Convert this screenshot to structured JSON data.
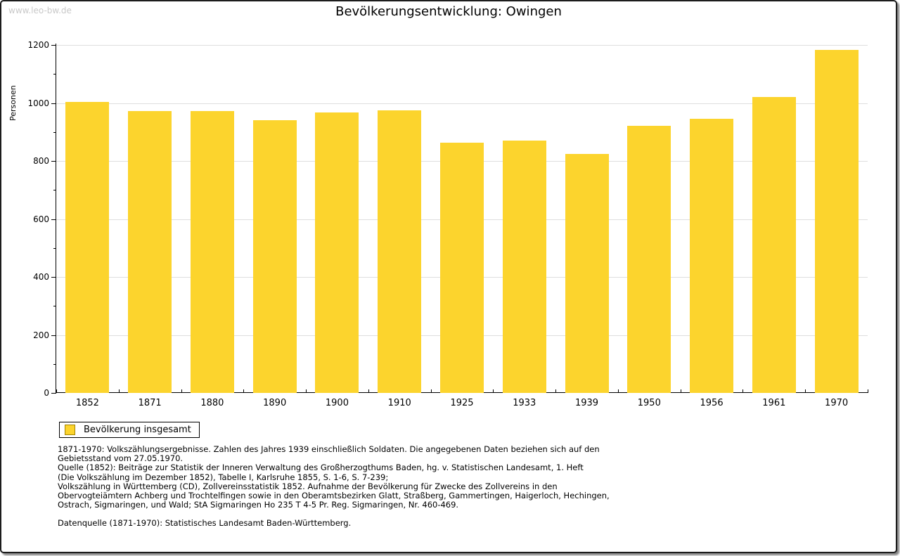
{
  "page": {
    "watermark": "www.leo-bw.de",
    "title": "Bevölkerungsentwicklung: Owingen"
  },
  "chart_data": {
    "type": "bar",
    "title": "Bevölkerungsentwicklung: Owingen",
    "xlabel": "",
    "ylabel": "Personen",
    "categories": [
      "1852",
      "1871",
      "1880",
      "1890",
      "1900",
      "1910",
      "1925",
      "1933",
      "1939",
      "1950",
      "1956",
      "1961",
      "1970"
    ],
    "values": [
      1003,
      971,
      972,
      941,
      968,
      975,
      862,
      870,
      824,
      922,
      946,
      1021,
      1183
    ],
    "ylim": [
      0,
      1200
    ],
    "ytick_step": 200,
    "ytick_minor_step": 100,
    "grid": true,
    "bar_color": "#fcd42d",
    "gridline_color": "#dedede",
    "legend_entries": [
      "Bevölkerung insgesamt"
    ],
    "legend_position": "bottom-left"
  },
  "legend": {
    "label": "Bevölkerung insgesamt"
  },
  "footnotes": {
    "lines": [
      "1871-1970: Volkszählungsergebnisse. Zahlen des Jahres 1939 einschließlich Soldaten. Die angegebenen Daten beziehen sich auf den",
      "Gebietsstand vom 27.05.1970.",
      "Quelle (1852): Beiträge zur Statistik der Inneren Verwaltung des Großherzogthums Baden, hg. v. Statistischen Landesamt, 1. Heft",
      "(Die Volkszählung im Dezember 1852), Tabelle I, Karlsruhe 1855, S. 1-6, S. 7-239;",
      "Volkszählung in Württemberg (CD), Zollvereinsstatistik 1852. Aufnahme der Bevölkerung für Zwecke des Zollvereins in den",
      "Obervogteiämtern Achberg und Trochtelfingen sowie in den Oberamtsbezirken Glatt, Straßberg, Gammertingen, Haigerloch, Hechingen,",
      "Ostrach, Sigmaringen, und Wald; StA Sigmaringen Ho 235 T 4-5 Pr. Reg. Sigmaringen, Nr. 460-469."
    ],
    "datasource": "Datenquelle (1871-1970): Statistisches Landesamt Baden-Württemberg."
  }
}
